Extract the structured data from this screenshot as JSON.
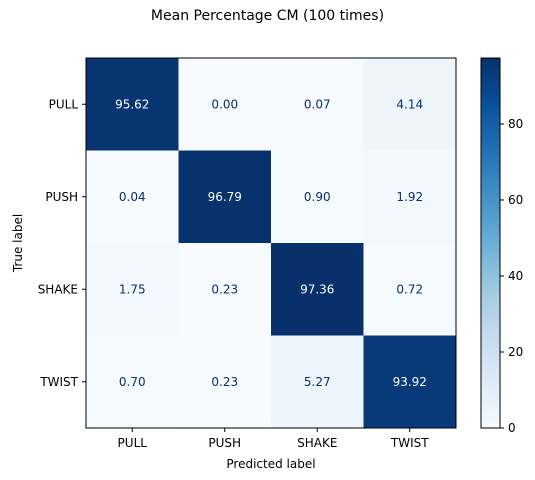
{
  "chart_data": {
    "type": "heatmap",
    "title": "Mean Percentage CM (100 times)",
    "xlabel": "Predicted label",
    "ylabel": "True label",
    "x_categories": [
      "PULL",
      "PUSH",
      "SHAKE",
      "TWIST"
    ],
    "y_categories": [
      "PULL",
      "PUSH",
      "SHAKE",
      "TWIST"
    ],
    "values": [
      [
        95.62,
        0.0,
        0.07,
        4.14
      ],
      [
        0.04,
        96.79,
        0.9,
        1.92
      ],
      [
        1.75,
        0.23,
        97.36,
        0.72
      ],
      [
        0.7,
        0.23,
        5.27,
        93.92
      ]
    ],
    "value_labels": [
      [
        "95.62",
        "0.00",
        "0.07",
        "4.14"
      ],
      [
        "0.04",
        "96.79",
        "0.90",
        "1.92"
      ],
      [
        "1.75",
        "0.23",
        "97.36",
        "0.72"
      ],
      [
        "0.70",
        "0.23",
        "5.27",
        "93.92"
      ]
    ],
    "colormap": "Blues",
    "colorbar": {
      "range": [
        0,
        97.36
      ],
      "ticks": [
        0,
        20,
        40,
        60,
        80
      ]
    },
    "grid": false
  }
}
